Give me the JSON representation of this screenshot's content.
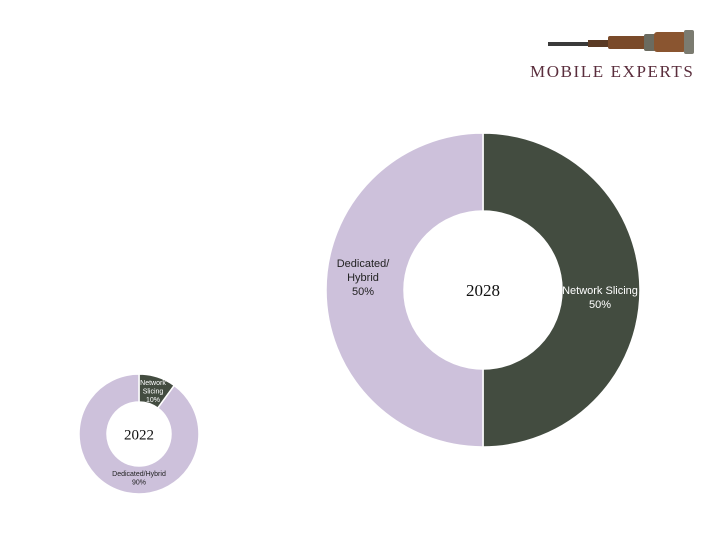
{
  "brand": {
    "name": "MOBILE EXPERTS",
    "icon": "telescope-icon"
  },
  "colors": {
    "network_slicing": "#434c40",
    "dedicated_hybrid": "#cdc1db",
    "brand_text": "#5a2d3c"
  },
  "chart_data": [
    {
      "type": "pie",
      "center_label": "2022",
      "slices": [
        {
          "name": "Network Slicing",
          "label_lines": [
            "Network",
            "Slicing",
            "10%"
          ],
          "value": 10,
          "color": "#434c40",
          "text_color": "#ffffff"
        },
        {
          "name": "Dedicated/Hybrid",
          "label_lines": [
            "Dedicated/Hybrid",
            "90%"
          ],
          "value": 90,
          "color": "#cdc1db",
          "text_color": "#222222"
        }
      ]
    },
    {
      "type": "pie",
      "center_label": "2028",
      "slices": [
        {
          "name": "Network Slicing",
          "label_lines": [
            "Network Slicing",
            "50%"
          ],
          "value": 50,
          "color": "#434c40",
          "text_color": "#ffffff"
        },
        {
          "name": "Dedicated/Hybrid",
          "label_lines": [
            "Dedicated/",
            "Hybrid",
            "50%"
          ],
          "value": 50,
          "color": "#cdc1db",
          "text_color": "#222222"
        }
      ]
    }
  ]
}
